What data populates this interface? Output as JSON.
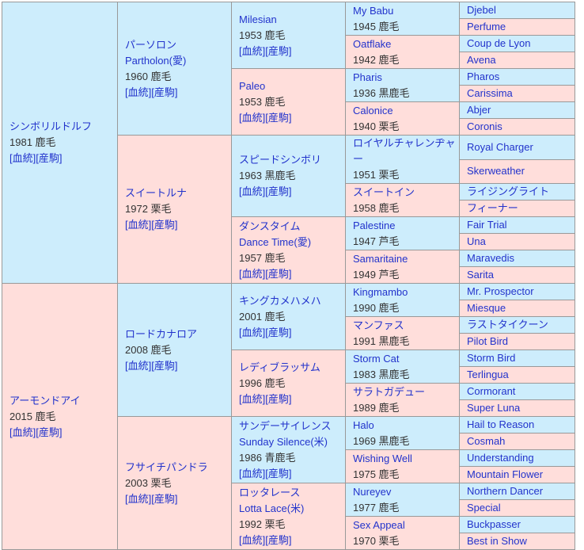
{
  "colors": {
    "male_bg": "#cdedfc",
    "female_bg": "#ffdedb",
    "border": "#999999",
    "link": "#2233cc",
    "text": "#333333",
    "page_bg": "#ffffff"
  },
  "link_labels": {
    "pedigree": "[血統]",
    "offspring": "[産駒]"
  },
  "pedigree": {
    "generations": [
      {
        "span": 16,
        "horses": [
          {
            "sex": "m",
            "name": "シンボリルドルフ",
            "detail": "1981 鹿毛",
            "has_links": true
          },
          {
            "sex": "f",
            "name": "アーモンドアイ",
            "detail": "2015 鹿毛",
            "has_links": true
          }
        ]
      },
      {
        "span": 8,
        "horses": [
          {
            "sex": "m",
            "name": "パーソロン",
            "sub": "Partholon(愛)",
            "detail": "1960 鹿毛",
            "has_links": true
          },
          {
            "sex": "f",
            "name": "スイートルナ",
            "detail": "1972 栗毛",
            "has_links": true
          },
          {
            "sex": "m",
            "name": "ロードカナロア",
            "detail": "2008 鹿毛",
            "has_links": true
          },
          {
            "sex": "f",
            "name": "フサイチパンドラ",
            "detail": "2003 栗毛",
            "has_links": true
          }
        ]
      },
      {
        "span": 4,
        "horses": [
          {
            "sex": "m",
            "name": "Milesian",
            "detail": "1953 鹿毛",
            "has_links": true
          },
          {
            "sex": "f",
            "name": "Paleo",
            "detail": "1953 鹿毛",
            "has_links": true
          },
          {
            "sex": "m",
            "name": "スピードシンボリ",
            "detail": "1963 黒鹿毛",
            "has_links": true
          },
          {
            "sex": "f",
            "name": "ダンスタイム",
            "sub": "Dance Time(愛)",
            "detail": "1957 鹿毛",
            "has_links": true
          },
          {
            "sex": "m",
            "name": "キングカメハメハ",
            "detail": "2001 鹿毛",
            "has_links": true
          },
          {
            "sex": "f",
            "name": "レディブラッサム",
            "detail": "1996 鹿毛",
            "has_links": true
          },
          {
            "sex": "m",
            "name": "サンデーサイレンス",
            "sub": "Sunday Silence(米)",
            "detail": "1986 青鹿毛",
            "has_links": true
          },
          {
            "sex": "f",
            "name": "ロッタレース",
            "sub": "Lotta Lace(米)",
            "detail": "1992 栗毛",
            "has_links": true
          }
        ]
      },
      {
        "span": 2,
        "horses": [
          {
            "sex": "m",
            "name": "My Babu",
            "detail": "1945 鹿毛"
          },
          {
            "sex": "f",
            "name": "Oatflake",
            "detail": "1942 鹿毛"
          },
          {
            "sex": "m",
            "name": "Pharis",
            "detail": "1936 黒鹿毛"
          },
          {
            "sex": "f",
            "name": "Calonice",
            "detail": "1940 栗毛"
          },
          {
            "sex": "m",
            "name": "ロイヤルチャレンヂャー",
            "detail": "1951 栗毛"
          },
          {
            "sex": "f",
            "name": "スイートイン",
            "detail": "1958 鹿毛"
          },
          {
            "sex": "m",
            "name": "Palestine",
            "detail": "1947 芦毛"
          },
          {
            "sex": "f",
            "name": "Samaritaine",
            "detail": "1949 芦毛"
          },
          {
            "sex": "m",
            "name": "Kingmambo",
            "detail": "1990 鹿毛"
          },
          {
            "sex": "f",
            "name": "マンファス",
            "detail": "1991 黒鹿毛"
          },
          {
            "sex": "m",
            "name": "Storm Cat",
            "detail": "1983 黒鹿毛"
          },
          {
            "sex": "f",
            "name": "サラトガデュー",
            "detail": "1989 鹿毛"
          },
          {
            "sex": "m",
            "name": "Halo",
            "detail": "1969 黒鹿毛"
          },
          {
            "sex": "f",
            "name": "Wishing Well",
            "detail": "1975 鹿毛"
          },
          {
            "sex": "m",
            "name": "Nureyev",
            "detail": "1977 鹿毛"
          },
          {
            "sex": "f",
            "name": "Sex Appeal",
            "detail": "1970 栗毛"
          }
        ]
      },
      {
        "span": 1,
        "horses": [
          {
            "sex": "m",
            "name": "Djebel"
          },
          {
            "sex": "f",
            "name": "Perfume"
          },
          {
            "sex": "m",
            "name": "Coup de Lyon"
          },
          {
            "sex": "f",
            "name": "Avena"
          },
          {
            "sex": "m",
            "name": "Pharos"
          },
          {
            "sex": "f",
            "name": "Carissima"
          },
          {
            "sex": "m",
            "name": "Abjer"
          },
          {
            "sex": "f",
            "name": "Coronis"
          },
          {
            "sex": "m",
            "name": "Royal Charger"
          },
          {
            "sex": "f",
            "name": "Skerweather"
          },
          {
            "sex": "m",
            "name": "ライジングライト"
          },
          {
            "sex": "f",
            "name": "フィーナー"
          },
          {
            "sex": "m",
            "name": "Fair Trial"
          },
          {
            "sex": "f",
            "name": "Una"
          },
          {
            "sex": "m",
            "name": "Maravedis"
          },
          {
            "sex": "f",
            "name": "Sarita"
          },
          {
            "sex": "m",
            "name": "Mr. Prospector"
          },
          {
            "sex": "f",
            "name": "Miesque"
          },
          {
            "sex": "m",
            "name": "ラストタイクーン"
          },
          {
            "sex": "f",
            "name": "Pilot Bird"
          },
          {
            "sex": "m",
            "name": "Storm Bird"
          },
          {
            "sex": "f",
            "name": "Terlingua"
          },
          {
            "sex": "m",
            "name": "Cormorant"
          },
          {
            "sex": "f",
            "name": "Super Luna"
          },
          {
            "sex": "m",
            "name": "Hail to Reason"
          },
          {
            "sex": "f",
            "name": "Cosmah"
          },
          {
            "sex": "m",
            "name": "Understanding"
          },
          {
            "sex": "f",
            "name": "Mountain Flower"
          },
          {
            "sex": "m",
            "name": "Northern Dancer"
          },
          {
            "sex": "f",
            "name": "Special"
          },
          {
            "sex": "m",
            "name": "Buckpasser"
          },
          {
            "sex": "f",
            "name": "Best in Show"
          }
        ]
      }
    ]
  }
}
